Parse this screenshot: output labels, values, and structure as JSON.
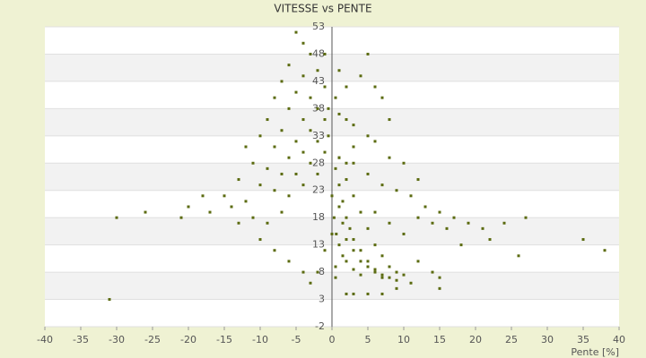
{
  "chart_data": {
    "type": "scatter",
    "title": "VITESSE vs PENTE",
    "x_label": "Pente [%]",
    "color": "#5b6b10",
    "xlim": [
      -40,
      40
    ],
    "xticks": [
      -40,
      -35,
      -30,
      -25,
      -20,
      -15,
      -10,
      -5,
      0,
      5,
      10,
      15,
      20,
      25,
      30,
      35,
      40
    ],
    "ylim": [
      -2,
      53
    ],
    "yticks": [
      -2,
      3,
      8,
      13,
      18,
      23,
      28,
      33,
      38,
      43,
      48,
      53
    ],
    "x": [
      -5,
      -4,
      -6,
      -3,
      -2,
      -4,
      -7,
      -5,
      -1,
      -3,
      -8,
      -6,
      -2,
      -9,
      -4,
      -1,
      -7,
      -3,
      -10,
      -5,
      -2,
      -8,
      -4,
      -1,
      -12,
      -6,
      -3,
      -11,
      -9,
      -7,
      -5,
      -2,
      -13,
      -10,
      -8,
      -4,
      -6,
      -15,
      -12,
      -14,
      -18,
      -20,
      -21,
      -17,
      -11,
      -9,
      -7,
      -13,
      -26,
      -30,
      -31,
      -10,
      -8,
      -6,
      -4,
      -3,
      -2,
      -1,
      1,
      2,
      0.5,
      1,
      2,
      3,
      5,
      4,
      6,
      7,
      8,
      5,
      3,
      1,
      2,
      0.5,
      1,
      1.5,
      2,
      2.5,
      3,
      4,
      5,
      6,
      7,
      8,
      9,
      1,
      2,
      3,
      4,
      5,
      6,
      7,
      8,
      9,
      10,
      1,
      1.5,
      2,
      3,
      4,
      5,
      6,
      7,
      0.3,
      0.6,
      1,
      1.5,
      2,
      3,
      4,
      3,
      5,
      7,
      9,
      11,
      13,
      15,
      17,
      19,
      21,
      24,
      27,
      35,
      38,
      26,
      22,
      18,
      16,
      14,
      12,
      10,
      8,
      6,
      12,
      14,
      15,
      15,
      11,
      9,
      7,
      5,
      3,
      2,
      0.5,
      0.5,
      0,
      0,
      -0.5,
      -1,
      -0.5,
      10,
      12,
      8,
      6
    ],
    "values": [
      52,
      50,
      46,
      48,
      45,
      44,
      43,
      41,
      42,
      40,
      40,
      38,
      38,
      36,
      36,
      36,
      34,
      34,
      33,
      32,
      32,
      31,
      30,
      30,
      31,
      29,
      28,
      28,
      27,
      26,
      26,
      26,
      25,
      24,
      23,
      24,
      22,
      22,
      21,
      20,
      22,
      20,
      18,
      19,
      18,
      17,
      19,
      17,
      19,
      18,
      3,
      14,
      12,
      10,
      8,
      6,
      8,
      12,
      45,
      42,
      40,
      37,
      36,
      35,
      48,
      44,
      42,
      40,
      36,
      33,
      31,
      29,
      28,
      27,
      24,
      21,
      18,
      16,
      14,
      12,
      10,
      8.5,
      7.5,
      7,
      6.5,
      29,
      25,
      22,
      19,
      16,
      13,
      11,
      9,
      8,
      7.5,
      20,
      17,
      14,
      12,
      10,
      9,
      8,
      7,
      18,
      15,
      13,
      11,
      10,
      8.5,
      7.5,
      28,
      26,
      24,
      23,
      22,
      20,
      19,
      18,
      17,
      16,
      17,
      18,
      14,
      12,
      11,
      14,
      13,
      16,
      17,
      18,
      15,
      17,
      19,
      10,
      8,
      5,
      7,
      6,
      5,
      4,
      4,
      4,
      4,
      7,
      9,
      15,
      22,
      33,
      48,
      38,
      28,
      25,
      29,
      32
    ]
  }
}
